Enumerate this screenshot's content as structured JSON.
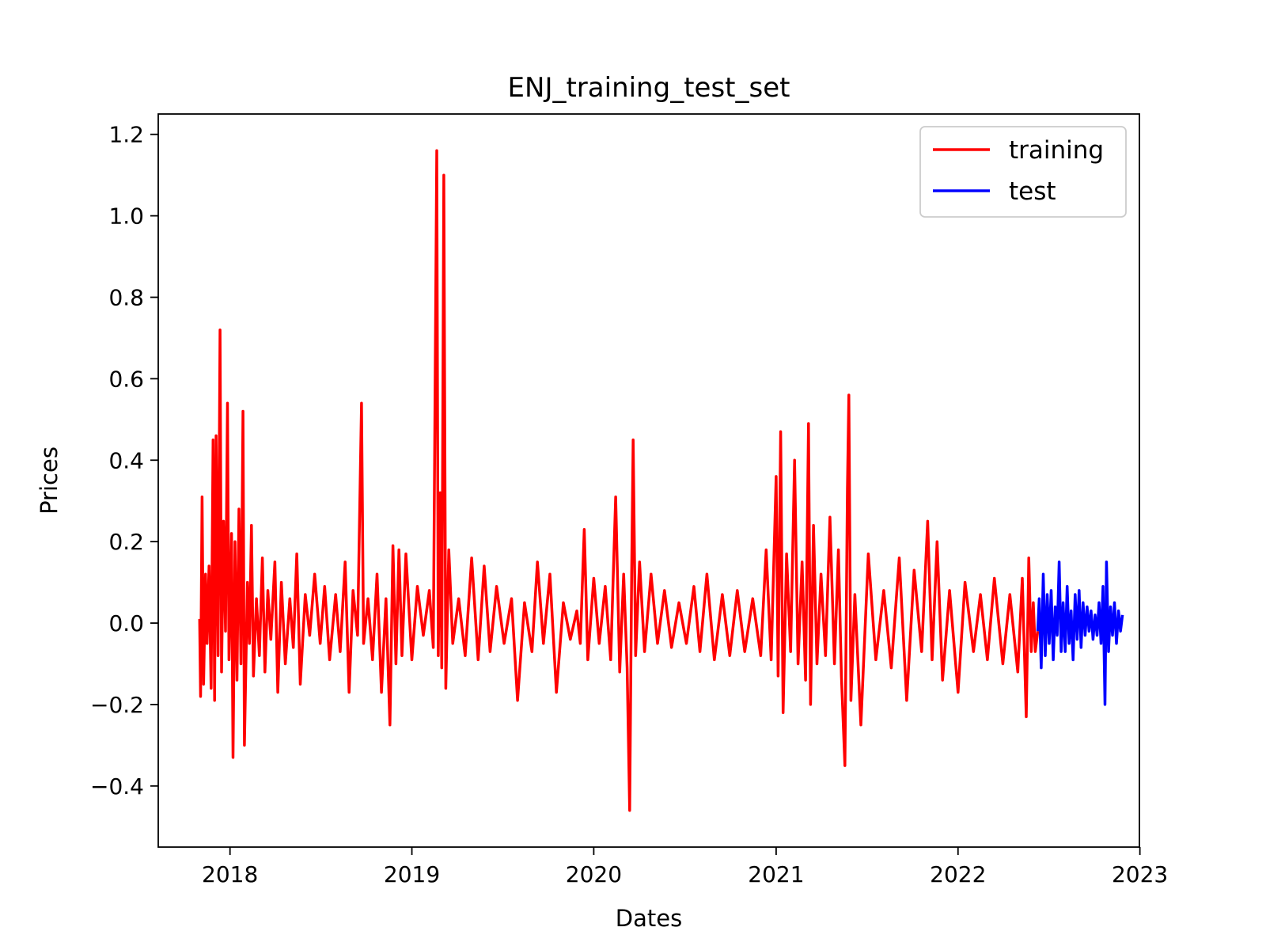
{
  "chart_data": {
    "type": "line",
    "title": "ENJ_training_test_set",
    "xlabel": "Dates",
    "ylabel": "Prices",
    "xlim": [
      "2017-08-10",
      "2022-12-31"
    ],
    "ylim": [
      -0.55,
      1.25
    ],
    "x_ticks": [
      {
        "date": "2018-01-01",
        "label": "2018"
      },
      {
        "date": "2019-01-01",
        "label": "2019"
      },
      {
        "date": "2020-01-01",
        "label": "2020"
      },
      {
        "date": "2021-01-01",
        "label": "2021"
      },
      {
        "date": "2022-01-01",
        "label": "2022"
      },
      {
        "date": "2023-01-01",
        "label": "2023"
      }
    ],
    "y_ticks": [
      {
        "value": -0.4,
        "label": "−0.4"
      },
      {
        "value": -0.2,
        "label": "−0.2"
      },
      {
        "value": 0.0,
        "label": "0.0"
      },
      {
        "value": 0.2,
        "label": "0.2"
      },
      {
        "value": 0.4,
        "label": "0.4"
      },
      {
        "value": 0.6,
        "label": "0.6"
      },
      {
        "value": 0.8,
        "label": "0.8"
      },
      {
        "value": 1.0,
        "label": "1.0"
      },
      {
        "value": 1.2,
        "label": "1.2"
      }
    ],
    "grid": false,
    "legend_position": "top-right",
    "series": [
      {
        "name": "training",
        "color": "#ff0000",
        "points": [
          [
            "2017-11-01",
            0.01
          ],
          [
            "2017-11-03",
            -0.18
          ],
          [
            "2017-11-06",
            0.31
          ],
          [
            "2017-11-09",
            -0.15
          ],
          [
            "2017-11-13",
            0.12
          ],
          [
            "2017-11-16",
            -0.05
          ],
          [
            "2017-11-20",
            0.14
          ],
          [
            "2017-11-24",
            -0.16
          ],
          [
            "2017-11-28",
            0.45
          ],
          [
            "2017-12-01",
            -0.19
          ],
          [
            "2017-12-04",
            0.46
          ],
          [
            "2017-12-08",
            -0.08
          ],
          [
            "2017-12-12",
            0.72
          ],
          [
            "2017-12-15",
            -0.12
          ],
          [
            "2017-12-19",
            0.25
          ],
          [
            "2017-12-23",
            -0.02
          ],
          [
            "2017-12-27",
            0.54
          ],
          [
            "2017-12-30",
            -0.09
          ],
          [
            "2018-01-04",
            0.22
          ],
          [
            "2018-01-07",
            -0.33
          ],
          [
            "2018-01-11",
            0.2
          ],
          [
            "2018-01-15",
            -0.14
          ],
          [
            "2018-01-19",
            0.28
          ],
          [
            "2018-01-23",
            -0.1
          ],
          [
            "2018-01-27",
            0.52
          ],
          [
            "2018-01-30",
            -0.3
          ],
          [
            "2018-02-05",
            0.1
          ],
          [
            "2018-02-09",
            -0.05
          ],
          [
            "2018-02-13",
            0.24
          ],
          [
            "2018-02-17",
            -0.13
          ],
          [
            "2018-02-23",
            0.06
          ],
          [
            "2018-03-01",
            -0.08
          ],
          [
            "2018-03-07",
            0.16
          ],
          [
            "2018-03-12",
            -0.12
          ],
          [
            "2018-03-18",
            0.08
          ],
          [
            "2018-03-24",
            -0.04
          ],
          [
            "2018-04-01",
            0.15
          ],
          [
            "2018-04-07",
            -0.17
          ],
          [
            "2018-04-14",
            0.1
          ],
          [
            "2018-04-22",
            -0.1
          ],
          [
            "2018-05-01",
            0.06
          ],
          [
            "2018-05-08",
            -0.06
          ],
          [
            "2018-05-15",
            0.17
          ],
          [
            "2018-05-22",
            -0.15
          ],
          [
            "2018-06-01",
            0.07
          ],
          [
            "2018-06-10",
            -0.03
          ],
          [
            "2018-06-20",
            0.12
          ],
          [
            "2018-07-01",
            -0.05
          ],
          [
            "2018-07-10",
            0.09
          ],
          [
            "2018-07-20",
            -0.09
          ],
          [
            "2018-08-01",
            0.07
          ],
          [
            "2018-08-10",
            -0.07
          ],
          [
            "2018-08-20",
            0.15
          ],
          [
            "2018-08-28",
            -0.17
          ],
          [
            "2018-09-05",
            0.08
          ],
          [
            "2018-09-14",
            -0.03
          ],
          [
            "2018-09-22",
            0.54
          ],
          [
            "2018-09-26",
            -0.05
          ],
          [
            "2018-10-05",
            0.06
          ],
          [
            "2018-10-14",
            -0.09
          ],
          [
            "2018-10-23",
            0.12
          ],
          [
            "2018-11-01",
            -0.17
          ],
          [
            "2018-11-10",
            0.06
          ],
          [
            "2018-11-18",
            -0.25
          ],
          [
            "2018-11-24",
            0.19
          ],
          [
            "2018-11-30",
            -0.1
          ],
          [
            "2018-12-06",
            0.18
          ],
          [
            "2018-12-12",
            -0.08
          ],
          [
            "2018-12-20",
            0.17
          ],
          [
            "2019-01-01",
            -0.09
          ],
          [
            "2019-01-12",
            0.09
          ],
          [
            "2019-01-24",
            -0.03
          ],
          [
            "2019-02-05",
            0.08
          ],
          [
            "2019-02-13",
            -0.06
          ],
          [
            "2019-02-20",
            1.16
          ],
          [
            "2019-02-23",
            -0.08
          ],
          [
            "2019-02-27",
            0.32
          ],
          [
            "2019-03-02",
            -0.11
          ],
          [
            "2019-03-06",
            1.1
          ],
          [
            "2019-03-10",
            -0.16
          ],
          [
            "2019-03-16",
            0.18
          ],
          [
            "2019-03-24",
            -0.05
          ],
          [
            "2019-04-05",
            0.06
          ],
          [
            "2019-04-18",
            -0.08
          ],
          [
            "2019-05-01",
            0.16
          ],
          [
            "2019-05-14",
            -0.09
          ],
          [
            "2019-05-26",
            0.14
          ],
          [
            "2019-06-07",
            -0.07
          ],
          [
            "2019-06-20",
            0.09
          ],
          [
            "2019-07-05",
            -0.05
          ],
          [
            "2019-07-20",
            0.06
          ],
          [
            "2019-08-01",
            -0.19
          ],
          [
            "2019-08-15",
            0.05
          ],
          [
            "2019-08-30",
            -0.07
          ],
          [
            "2019-09-10",
            0.15
          ],
          [
            "2019-09-22",
            -0.05
          ],
          [
            "2019-10-05",
            0.12
          ],
          [
            "2019-10-18",
            -0.17
          ],
          [
            "2019-11-01",
            0.05
          ],
          [
            "2019-11-15",
            -0.04
          ],
          [
            "2019-11-28",
            0.03
          ],
          [
            "2019-12-05",
            -0.05
          ],
          [
            "2019-12-13",
            0.23
          ],
          [
            "2019-12-20",
            -0.09
          ],
          [
            "2020-01-01",
            0.11
          ],
          [
            "2020-01-12",
            -0.05
          ],
          [
            "2020-01-24",
            0.09
          ],
          [
            "2020-02-04",
            -0.09
          ],
          [
            "2020-02-14",
            0.31
          ],
          [
            "2020-02-22",
            -0.12
          ],
          [
            "2020-03-01",
            0.12
          ],
          [
            "2020-03-08",
            -0.11
          ],
          [
            "2020-03-13",
            -0.46
          ],
          [
            "2020-03-17",
            0.12
          ],
          [
            "2020-03-20",
            0.45
          ],
          [
            "2020-03-25",
            -0.08
          ],
          [
            "2020-04-02",
            0.15
          ],
          [
            "2020-04-12",
            -0.07
          ],
          [
            "2020-04-25",
            0.12
          ],
          [
            "2020-05-08",
            -0.05
          ],
          [
            "2020-05-22",
            0.08
          ],
          [
            "2020-06-05",
            -0.06
          ],
          [
            "2020-06-20",
            0.05
          ],
          [
            "2020-07-05",
            -0.05
          ],
          [
            "2020-07-20",
            0.09
          ],
          [
            "2020-08-01",
            -0.07
          ],
          [
            "2020-08-15",
            0.12
          ],
          [
            "2020-08-30",
            -0.09
          ],
          [
            "2020-09-15",
            0.07
          ],
          [
            "2020-09-30",
            -0.08
          ],
          [
            "2020-10-15",
            0.08
          ],
          [
            "2020-10-30",
            -0.07
          ],
          [
            "2020-11-15",
            0.06
          ],
          [
            "2020-12-01",
            -0.08
          ],
          [
            "2020-12-12",
            0.18
          ],
          [
            "2020-12-22",
            -0.09
          ],
          [
            "2021-01-01",
            0.36
          ],
          [
            "2021-01-05",
            -0.13
          ],
          [
            "2021-01-10",
            0.47
          ],
          [
            "2021-01-15",
            -0.22
          ],
          [
            "2021-01-22",
            0.17
          ],
          [
            "2021-01-30",
            -0.07
          ],
          [
            "2021-02-07",
            0.4
          ],
          [
            "2021-02-14",
            -0.1
          ],
          [
            "2021-02-22",
            0.15
          ],
          [
            "2021-03-01",
            -0.14
          ],
          [
            "2021-03-07",
            0.49
          ],
          [
            "2021-03-11",
            -0.2
          ],
          [
            "2021-03-17",
            0.24
          ],
          [
            "2021-03-24",
            -0.1
          ],
          [
            "2021-04-01",
            0.12
          ],
          [
            "2021-04-10",
            -0.08
          ],
          [
            "2021-04-19",
            0.26
          ],
          [
            "2021-04-28",
            -0.1
          ],
          [
            "2021-05-06",
            0.18
          ],
          [
            "2021-05-12",
            -0.13
          ],
          [
            "2021-05-19",
            -0.35
          ],
          [
            "2021-05-24",
            0.33
          ],
          [
            "2021-05-27",
            0.56
          ],
          [
            "2021-05-31",
            -0.19
          ],
          [
            "2021-06-08",
            0.07
          ],
          [
            "2021-06-20",
            -0.25
          ],
          [
            "2021-07-05",
            0.17
          ],
          [
            "2021-07-20",
            -0.09
          ],
          [
            "2021-08-05",
            0.08
          ],
          [
            "2021-08-20",
            -0.11
          ],
          [
            "2021-09-05",
            0.16
          ],
          [
            "2021-09-20",
            -0.19
          ],
          [
            "2021-10-05",
            0.13
          ],
          [
            "2021-10-20",
            -0.07
          ],
          [
            "2021-11-01",
            0.25
          ],
          [
            "2021-11-10",
            -0.09
          ],
          [
            "2021-11-20",
            0.2
          ],
          [
            "2021-12-01",
            -0.14
          ],
          [
            "2021-12-15",
            0.08
          ],
          [
            "2022-01-01",
            -0.17
          ],
          [
            "2022-01-15",
            0.1
          ],
          [
            "2022-02-01",
            -0.07
          ],
          [
            "2022-02-15",
            0.07
          ],
          [
            "2022-03-01",
            -0.09
          ],
          [
            "2022-03-15",
            0.11
          ],
          [
            "2022-04-01",
            -0.1
          ],
          [
            "2022-04-15",
            0.07
          ],
          [
            "2022-05-01",
            -0.12
          ],
          [
            "2022-05-10",
            0.11
          ],
          [
            "2022-05-18",
            -0.23
          ],
          [
            "2022-05-23",
            0.16
          ],
          [
            "2022-05-28",
            -0.07
          ],
          [
            "2022-06-01",
            0.05
          ],
          [
            "2022-06-05",
            -0.07
          ],
          [
            "2022-06-10",
            -0.02
          ]
        ]
      },
      {
        "name": "test",
        "color": "#0000ff",
        "points": [
          [
            "2022-06-10",
            -0.02
          ],
          [
            "2022-06-13",
            0.06
          ],
          [
            "2022-06-17",
            -0.11
          ],
          [
            "2022-06-21",
            0.12
          ],
          [
            "2022-06-25",
            -0.08
          ],
          [
            "2022-06-29",
            0.07
          ],
          [
            "2022-07-03",
            -0.05
          ],
          [
            "2022-07-07",
            0.08
          ],
          [
            "2022-07-11",
            -0.09
          ],
          [
            "2022-07-15",
            0.04
          ],
          [
            "2022-07-19",
            -0.03
          ],
          [
            "2022-07-23",
            0.15
          ],
          [
            "2022-07-27",
            -0.07
          ],
          [
            "2022-07-31",
            0.05
          ],
          [
            "2022-08-04",
            -0.07
          ],
          [
            "2022-08-08",
            0.09
          ],
          [
            "2022-08-12",
            -0.05
          ],
          [
            "2022-08-16",
            0.03
          ],
          [
            "2022-08-20",
            -0.09
          ],
          [
            "2022-08-24",
            0.07
          ],
          [
            "2022-08-28",
            -0.04
          ],
          [
            "2022-09-01",
            0.08
          ],
          [
            "2022-09-05",
            -0.06
          ],
          [
            "2022-09-09",
            0.05
          ],
          [
            "2022-09-13",
            -0.03
          ],
          [
            "2022-09-17",
            0.04
          ],
          [
            "2022-09-21",
            -0.02
          ],
          [
            "2022-09-25",
            0.03
          ],
          [
            "2022-09-29",
            -0.04
          ],
          [
            "2022-10-03",
            0.02
          ],
          [
            "2022-10-07",
            -0.03
          ],
          [
            "2022-10-11",
            0.05
          ],
          [
            "2022-10-15",
            -0.05
          ],
          [
            "2022-10-19",
            0.09
          ],
          [
            "2022-10-23",
            -0.2
          ],
          [
            "2022-10-26",
            0.15
          ],
          [
            "2022-10-30",
            -0.07
          ],
          [
            "2022-11-03",
            0.04
          ],
          [
            "2022-11-07",
            -0.03
          ],
          [
            "2022-11-11",
            0.05
          ],
          [
            "2022-11-15",
            -0.05
          ],
          [
            "2022-11-19",
            0.03
          ],
          [
            "2022-11-23",
            -0.02
          ],
          [
            "2022-11-27",
            0.02
          ]
        ]
      }
    ]
  }
}
